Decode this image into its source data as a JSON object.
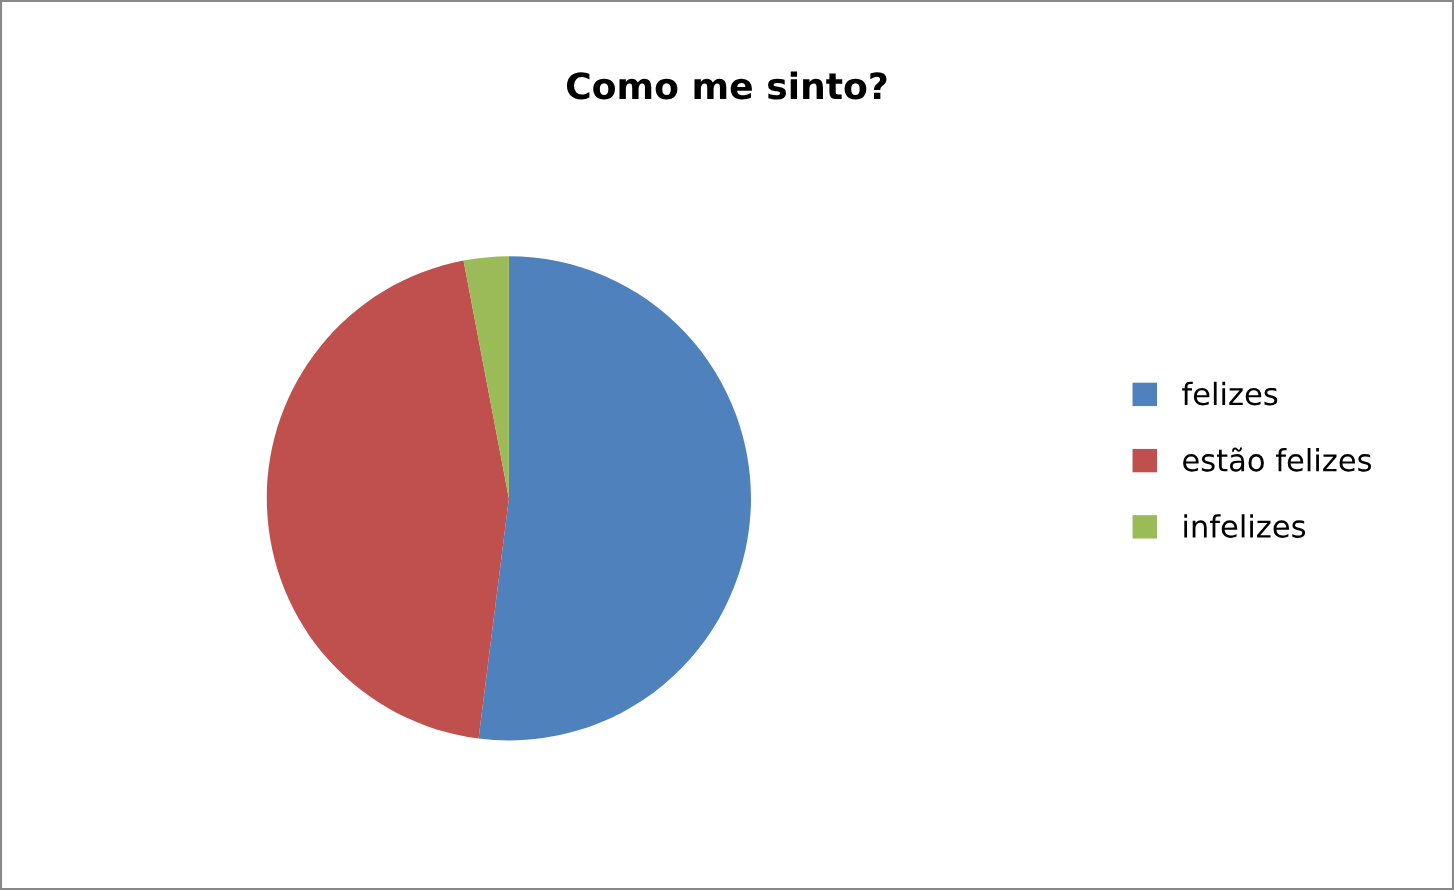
{
  "chart_data": {
    "type": "pie",
    "title": "Como me sinto?",
    "categories": [
      "felizes",
      "estão felizes",
      "infelizes"
    ],
    "values": [
      52,
      45,
      3
    ],
    "colors": [
      "#4f81bd",
      "#c0504d",
      "#9bbb59"
    ],
    "legend": "right"
  }
}
